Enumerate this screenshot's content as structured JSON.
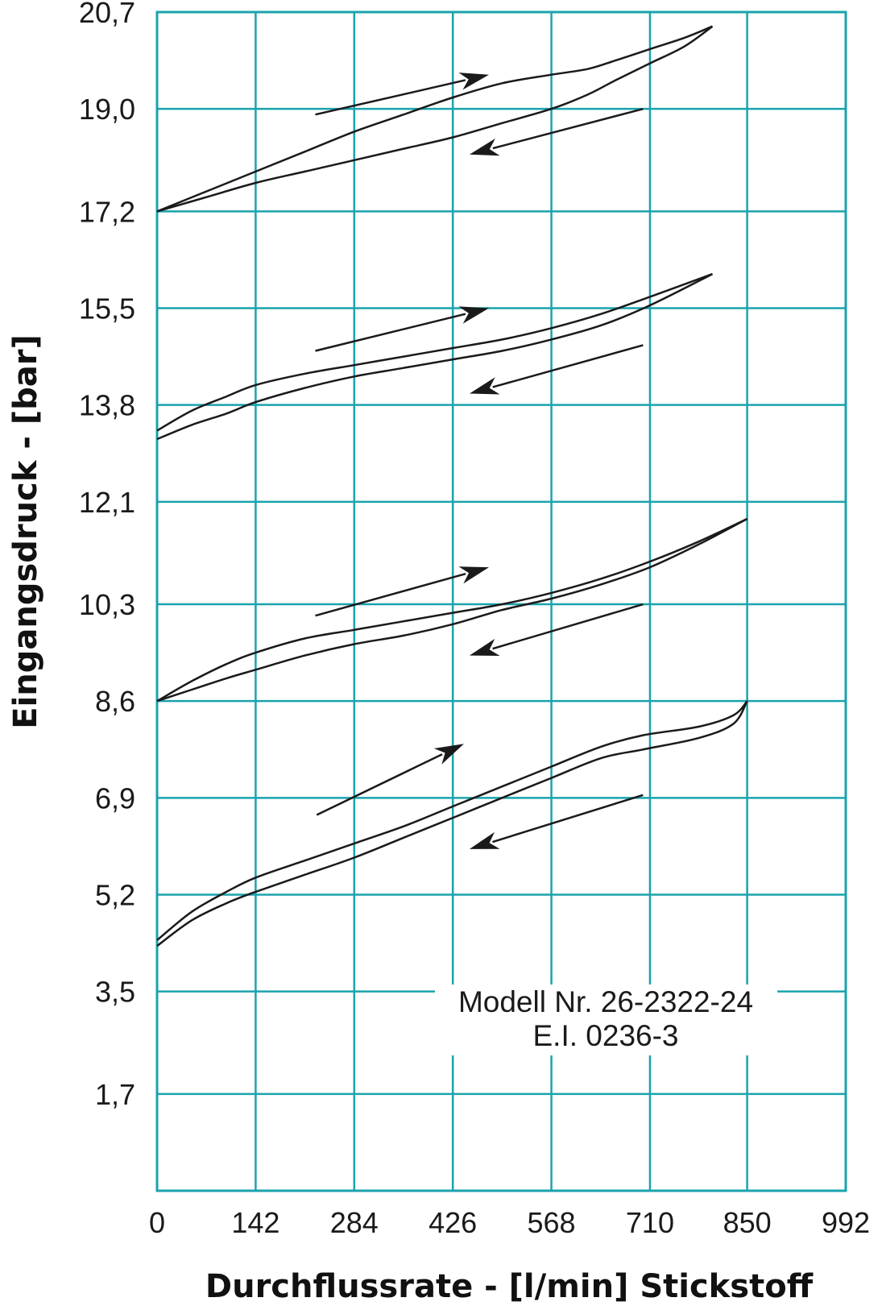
{
  "chart_data": {
    "type": "line",
    "title": "",
    "xlabel": "Durchflussrate - [l/min] Stickstoff",
    "ylabel": "Eingangsdruck - [bar]",
    "x_ticks": [
      0,
      142,
      284,
      426,
      568,
      710,
      850,
      992
    ],
    "x_tick_labels": [
      "0",
      "142",
      "284",
      "426",
      "568",
      "710",
      "850",
      "992"
    ],
    "y_ticks": [
      0,
      1.7,
      3.5,
      5.2,
      6.9,
      8.6,
      10.3,
      12.1,
      13.8,
      15.5,
      17.2,
      19.0,
      20.7
    ],
    "y_tick_labels": [
      "",
      "1,7",
      "3,5",
      "5,2",
      "6,9",
      "8,6",
      "10,3",
      "12,1",
      "13,8",
      "15,5",
      "17,2",
      "19,0",
      "20,7"
    ],
    "xlim": [
      0,
      992
    ],
    "ylim": [
      0,
      20.7
    ],
    "grid": true,
    "colors": {
      "grid": "#1aa3ad",
      "line": "#1a1a1a"
    },
    "annotation": {
      "lines": [
        "Modell Nr. 26-2322-24",
        "E.I. 0236-3"
      ]
    },
    "series": [
      {
        "x": [
          0,
          71,
          142,
          213,
          284,
          355,
          426,
          497,
          568,
          620,
          660,
          710,
          760,
          800
        ],
        "y": [
          17.2,
          17.55,
          17.9,
          18.25,
          18.6,
          18.9,
          19.2,
          19.45,
          19.6,
          19.7,
          19.85,
          20.05,
          20.25,
          20.45
        ]
      },
      {
        "x": [
          0,
          71,
          142,
          213,
          284,
          355,
          426,
          497,
          568,
          620,
          660,
          710,
          760,
          800
        ],
        "y": [
          17.2,
          17.45,
          17.7,
          17.9,
          18.1,
          18.3,
          18.5,
          18.75,
          19.0,
          19.25,
          19.5,
          19.8,
          20.1,
          20.45
        ]
      },
      {
        "x": [
          0,
          50,
          100,
          142,
          213,
          284,
          355,
          426,
          497,
          568,
          640,
          710,
          800
        ],
        "y": [
          13.35,
          13.7,
          13.95,
          14.15,
          14.35,
          14.5,
          14.65,
          14.8,
          14.95,
          15.15,
          15.4,
          15.7,
          16.1
        ]
      },
      {
        "x": [
          0,
          50,
          100,
          142,
          213,
          284,
          355,
          426,
          497,
          568,
          640,
          710,
          800
        ],
        "y": [
          13.2,
          13.45,
          13.65,
          13.85,
          14.1,
          14.3,
          14.45,
          14.6,
          14.75,
          14.95,
          15.2,
          15.55,
          16.1
        ]
      },
      {
        "x": [
          0,
          50,
          100,
          142,
          213,
          284,
          355,
          426,
          497,
          568,
          640,
          710,
          780,
          850
        ],
        "y": [
          8.6,
          8.95,
          9.25,
          9.45,
          9.7,
          9.85,
          10.0,
          10.15,
          10.3,
          10.5,
          10.75,
          11.05,
          11.4,
          11.8
        ]
      },
      {
        "x": [
          0,
          50,
          100,
          142,
          213,
          284,
          355,
          426,
          497,
          568,
          640,
          710,
          780,
          850
        ],
        "y": [
          8.6,
          8.8,
          9.0,
          9.15,
          9.4,
          9.6,
          9.75,
          9.95,
          10.2,
          10.4,
          10.65,
          10.95,
          11.35,
          11.8
        ]
      },
      {
        "x": [
          0,
          50,
          100,
          142,
          213,
          284,
          355,
          426,
          497,
          568,
          640,
          700,
          780,
          830,
          850
        ],
        "y": [
          4.4,
          4.9,
          5.25,
          5.5,
          5.8,
          6.1,
          6.4,
          6.75,
          7.1,
          7.45,
          7.8,
          8.0,
          8.15,
          8.35,
          8.6
        ]
      },
      {
        "x": [
          0,
          50,
          100,
          142,
          213,
          284,
          355,
          426,
          497,
          568,
          640,
          700,
          780,
          830,
          850
        ],
        "y": [
          4.3,
          4.75,
          5.05,
          5.25,
          5.55,
          5.85,
          6.2,
          6.55,
          6.9,
          7.25,
          7.6,
          7.75,
          7.95,
          8.2,
          8.6
        ]
      }
    ],
    "arrows": [
      {
        "from": [
          228,
          18.9
        ],
        "to": [
          478,
          19.6
        ]
      },
      {
        "from": [
          700,
          19.0
        ],
        "to": [
          450,
          18.2
        ]
      },
      {
        "from": [
          228,
          14.75
        ],
        "to": [
          478,
          15.5
        ]
      },
      {
        "from": [
          700,
          14.85
        ],
        "to": [
          450,
          14.0
        ]
      },
      {
        "from": [
          228,
          10.1
        ],
        "to": [
          478,
          10.95
        ]
      },
      {
        "from": [
          700,
          10.3
        ],
        "to": [
          450,
          9.4
        ]
      },
      {
        "from": [
          230,
          6.6
        ],
        "to": [
          442,
          7.85
        ]
      },
      {
        "from": [
          700,
          6.95
        ],
        "to": [
          450,
          6.0
        ]
      }
    ]
  }
}
